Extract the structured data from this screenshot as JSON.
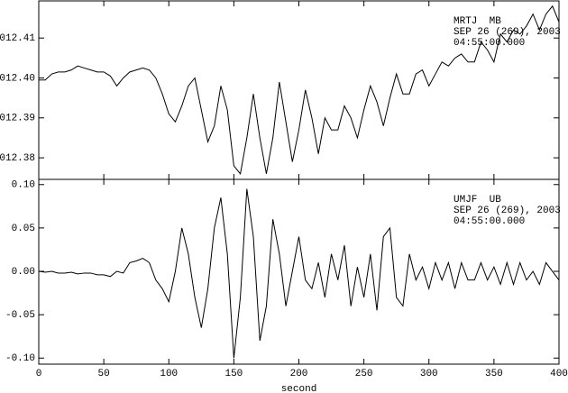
{
  "chart_data": [
    {
      "type": "line",
      "annotations": [
        "MRTJ  MB",
        "SEP 26 (269), 2003",
        "04:55:00.000"
      ],
      "color": "#000000",
      "xlim": [
        0,
        400
      ],
      "xticks": [
        0,
        50,
        100,
        150,
        200,
        250,
        300,
        350,
        400
      ],
      "ylim": [
        1012.3746,
        1012.4193
      ],
      "yticks": [
        {
          "value": 1012.38,
          "label": "1012.38"
        },
        1012.39,
        {
          "value": 1012.4,
          "label": "1012.40"
        },
        1012.41
      ],
      "x": [
        0,
        5,
        10,
        15,
        20,
        25,
        30,
        35,
        40,
        45,
        50,
        55,
        60,
        65,
        70,
        75,
        80,
        85,
        90,
        95,
        100,
        105,
        110,
        115,
        120,
        125,
        130,
        135,
        140,
        145,
        150,
        155,
        160,
        165,
        170,
        175,
        180,
        185,
        190,
        195,
        200,
        205,
        210,
        215,
        220,
        225,
        230,
        235,
        240,
        245,
        250,
        255,
        260,
        265,
        270,
        275,
        280,
        285,
        290,
        295,
        300,
        305,
        310,
        315,
        320,
        325,
        330,
        335,
        340,
        345,
        350,
        355,
        360,
        365,
        370,
        375,
        380,
        385,
        390,
        395,
        400
      ],
      "values": [
        1012.3995,
        1012.3995,
        1012.401,
        1012.4015,
        1012.4015,
        1012.402,
        1012.403,
        1012.4025,
        1012.402,
        1012.4015,
        1012.4015,
        1012.4005,
        1012.398,
        1012.4,
        1012.4015,
        1012.402,
        1012.4025,
        1012.402,
        1012.4,
        1012.396,
        1012.391,
        1012.389,
        1012.393,
        1012.398,
        1012.4,
        1012.392,
        1012.384,
        1012.388,
        1012.398,
        1012.392,
        1012.378,
        1012.376,
        1012.385,
        1012.396,
        1012.385,
        1012.376,
        1012.385,
        1012.399,
        1012.389,
        1012.379,
        1012.387,
        1012.397,
        1012.39,
        1012.381,
        1012.39,
        1012.387,
        1012.387,
        1012.393,
        1012.39,
        1012.385,
        1012.392,
        1012.398,
        1012.394,
        1012.388,
        1012.395,
        1012.401,
        1012.396,
        1012.396,
        1012.401,
        1012.402,
        1012.398,
        1012.401,
        1012.404,
        1012.403,
        1012.405,
        1012.406,
        1012.404,
        1012.404,
        1012.409,
        1012.407,
        1012.404,
        1012.411,
        1012.409,
        1012.412,
        1012.411,
        1012.413,
        1012.416,
        1012.412,
        1012.416,
        1012.418,
        1012.414
      ]
    },
    {
      "type": "line",
      "annotations": [
        "UMJF  UB",
        "SEP 26 (269), 2003",
        "04:55:00.000"
      ],
      "color": "#000000",
      "xlabel": "second",
      "xlim": [
        0,
        400
      ],
      "xticks": [
        0,
        50,
        100,
        150,
        200,
        250,
        300,
        350,
        400
      ],
      "ylim": [
        -0.107,
        0.106
      ],
      "yticks": [
        {
          "value": -0.1,
          "label": "-0.10"
        },
        -0.05,
        {
          "value": 0,
          "label": "0.00"
        },
        0.05,
        {
          "value": 0.1,
          "label": "0.10"
        }
      ],
      "x": [
        0,
        5,
        10,
        15,
        20,
        25,
        30,
        35,
        40,
        45,
        50,
        55,
        60,
        65,
        70,
        75,
        80,
        85,
        90,
        95,
        100,
        105,
        110,
        115,
        120,
        125,
        130,
        135,
        140,
        145,
        150,
        155,
        160,
        165,
        170,
        175,
        180,
        185,
        190,
        195,
        200,
        205,
        210,
        215,
        220,
        225,
        230,
        235,
        240,
        245,
        250,
        255,
        260,
        265,
        270,
        275,
        280,
        285,
        290,
        295,
        300,
        305,
        310,
        315,
        320,
        325,
        330,
        335,
        340,
        345,
        350,
        355,
        360,
        365,
        370,
        375,
        380,
        385,
        390,
        395,
        400
      ],
      "values": [
        0,
        -0.001,
        0,
        -0.002,
        -0.002,
        -0.001,
        -0.003,
        -0.002,
        -0.002,
        -0.004,
        -0.004,
        -0.006,
        0,
        -0.002,
        0.01,
        0.012,
        0.015,
        0.01,
        -0.01,
        -0.02,
        -0.035,
        0,
        0.05,
        0.02,
        -0.03,
        -0.065,
        -0.02,
        0.05,
        0.085,
        0.02,
        -0.1,
        -0.03,
        0.095,
        0.04,
        -0.08,
        -0.04,
        0.06,
        0.02,
        -0.04,
        0,
        0.04,
        -0.01,
        -0.02,
        0.01,
        -0.03,
        0.02,
        -0.01,
        0.03,
        -0.04,
        0.005,
        -0.03,
        0.02,
        -0.045,
        0.04,
        0.05,
        -0.03,
        -0.04,
        0.02,
        -0.01,
        0.005,
        -0.02,
        0.01,
        -0.01,
        0.01,
        -0.02,
        0.01,
        -0.01,
        -0.01,
        0.01,
        -0.01,
        0.005,
        -0.015,
        0.01,
        -0.015,
        0.01,
        -0.01,
        0,
        -0.015,
        0.01,
        0,
        -0.01
      ]
    }
  ]
}
